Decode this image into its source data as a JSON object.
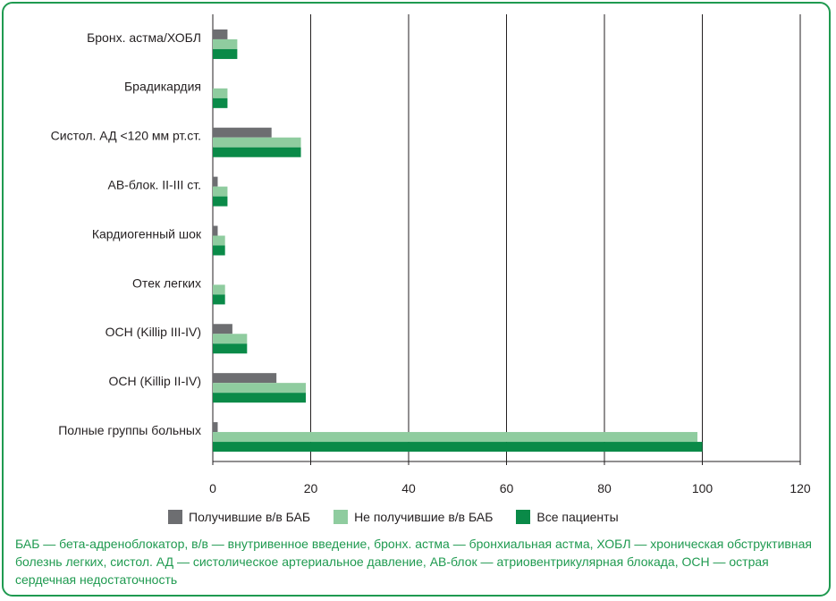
{
  "chart_data": {
    "type": "bar",
    "orientation": "horizontal",
    "categories": [
      "Бронх. астма/ХОБЛ",
      "Брадикардия",
      "Систол. АД <120 мм рт.ст.",
      "АВ-блок. II-III ст.",
      "Кардиогенный шок",
      "Отек легких",
      "ОСН (Killip III-IV)",
      "ОСН (Killip II-IV)",
      "Полные группы больных"
    ],
    "series": [
      {
        "name": "Получившие в/в  БАБ",
        "color": "#6d6e71",
        "values": [
          3,
          0,
          12,
          1,
          1,
          0,
          4,
          13,
          1
        ]
      },
      {
        "name": "Не получившие в/в БАБ",
        "color": "#8fcc9f",
        "values": [
          5,
          3,
          18,
          3,
          2.5,
          2.5,
          7,
          19,
          99
        ]
      },
      {
        "name": "Все пациенты",
        "color": "#0a8a48",
        "values": [
          5,
          3,
          18,
          3,
          2.5,
          2.5,
          7,
          19,
          100
        ]
      }
    ],
    "xlim": [
      0,
      120
    ],
    "xticks": [
      "0",
      "20",
      "40",
      "60",
      "80",
      "100",
      "120"
    ],
    "grid": "vertical",
    "legend_position": "bottom",
    "xlabel": "",
    "ylabel": ""
  },
  "footnote": "БАБ — бета-адреноблокатор, в/в — внутривенное введение, бронх. астма — бронхиальная астма, ХОБЛ — хро­ническая обструктивная болезнь легких, систол. АД — систолическое артериальное давление, АВ-блок — атрио­вентрикулярная блокада, ОСН — острая сердечная недостаточность",
  "colors": {
    "frame": "#1f9a50",
    "footnote": "#1f9a50",
    "grid": "#231f20"
  }
}
